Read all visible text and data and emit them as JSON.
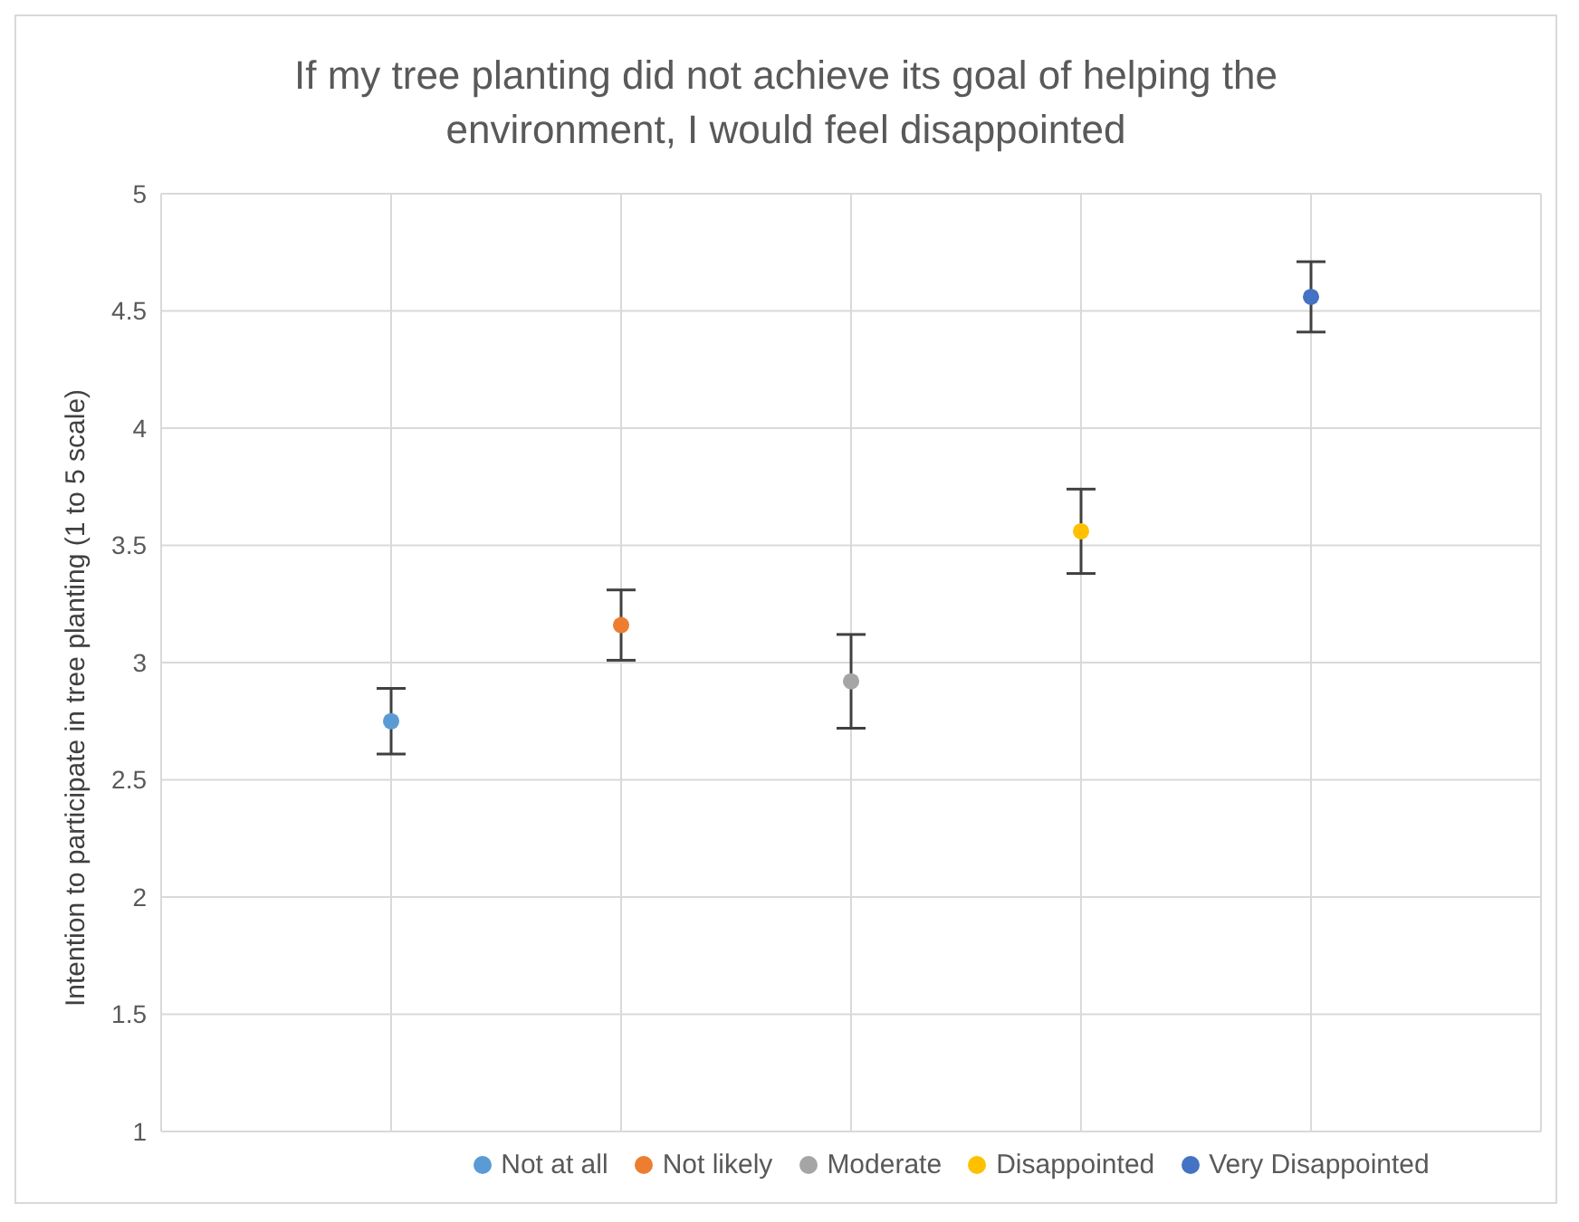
{
  "chart_data": {
    "type": "scatter",
    "title": "If my tree planting did not achieve its goal of helping the environment, I would feel disappointed",
    "ylabel": "Intention to participate in tree planting (1 to 5 scale)",
    "categories": [
      null,
      null,
      null,
      null,
      null
    ],
    "series": [
      {
        "name": "Not at all",
        "color": "#5b9bd5",
        "values": [
          2.75,
          null,
          null,
          null,
          null
        ],
        "errors": [
          [
            2.61,
            2.89
          ],
          null,
          null,
          null,
          null
        ]
      },
      {
        "name": "Not likely",
        "color": "#ed7d31",
        "values": [
          null,
          3.16,
          null,
          null,
          null
        ],
        "errors": [
          null,
          [
            3.01,
            3.31
          ],
          null,
          null,
          null
        ]
      },
      {
        "name": "Moderate",
        "color": "#a5a5a5",
        "values": [
          null,
          null,
          2.92,
          null,
          null
        ],
        "errors": [
          null,
          null,
          [
            2.72,
            3.12
          ],
          null,
          null
        ]
      },
      {
        "name": "Disappointed",
        "color": "#ffc000",
        "values": [
          null,
          null,
          null,
          3.56,
          null
        ],
        "errors": [
          null,
          null,
          null,
          [
            3.38,
            3.74
          ],
          null
        ]
      },
      {
        "name": "Very Disappointed",
        "color": "#4472c4",
        "values": [
          null,
          null,
          null,
          null,
          4.56
        ],
        "errors": [
          null,
          null,
          null,
          null,
          [
            4.41,
            4.71
          ]
        ]
      }
    ],
    "ylim": [
      1,
      5
    ],
    "yticks": [
      1,
      1.5,
      2,
      2.5,
      3,
      3.5,
      4,
      4.5,
      5
    ],
    "grid": true,
    "legend": "bottom",
    "marker": "circle"
  }
}
